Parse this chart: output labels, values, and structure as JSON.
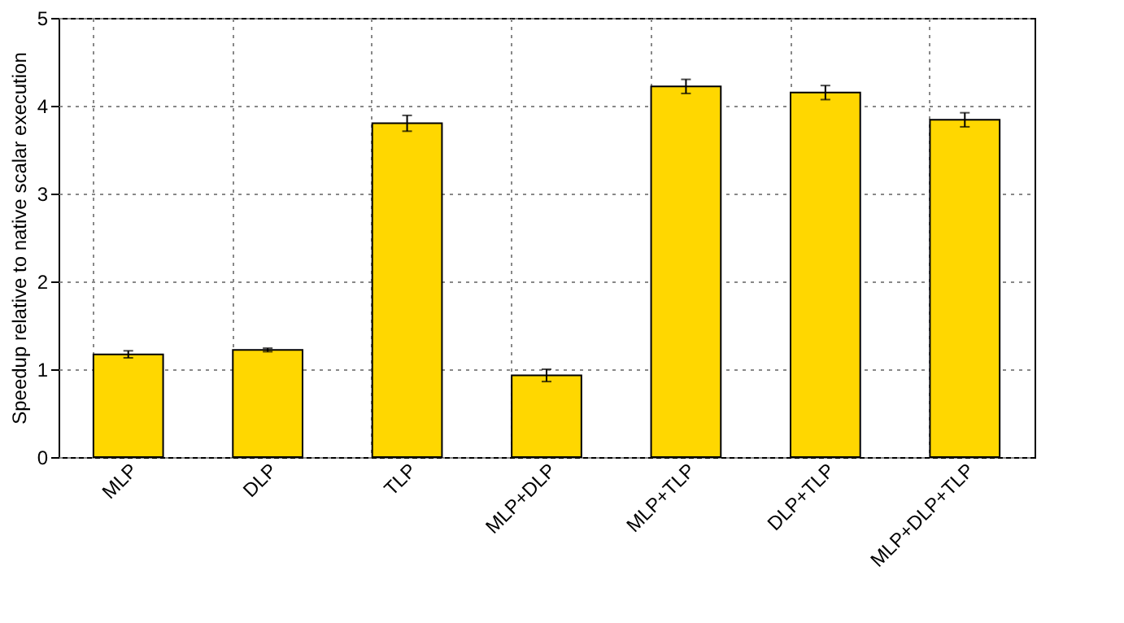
{
  "chart_data": {
    "type": "bar",
    "ylabel": "Speedup relative to native scalar execution",
    "categories": [
      "MLP",
      "DLP",
      "TLP",
      "MLP+DLP",
      "MLP+TLP",
      "DLP+TLP",
      "MLP+DLP+TLP"
    ],
    "values": [
      1.17,
      1.22,
      3.8,
      0.93,
      4.22,
      4.15,
      3.84
    ],
    "errors": [
      0.04,
      0.02,
      0.09,
      0.07,
      0.08,
      0.08,
      0.08
    ],
    "color": "#ffd700",
    "ylim": [
      0,
      5
    ],
    "yticks": [
      0,
      1,
      2,
      3,
      4,
      5
    ],
    "grid": true
  }
}
